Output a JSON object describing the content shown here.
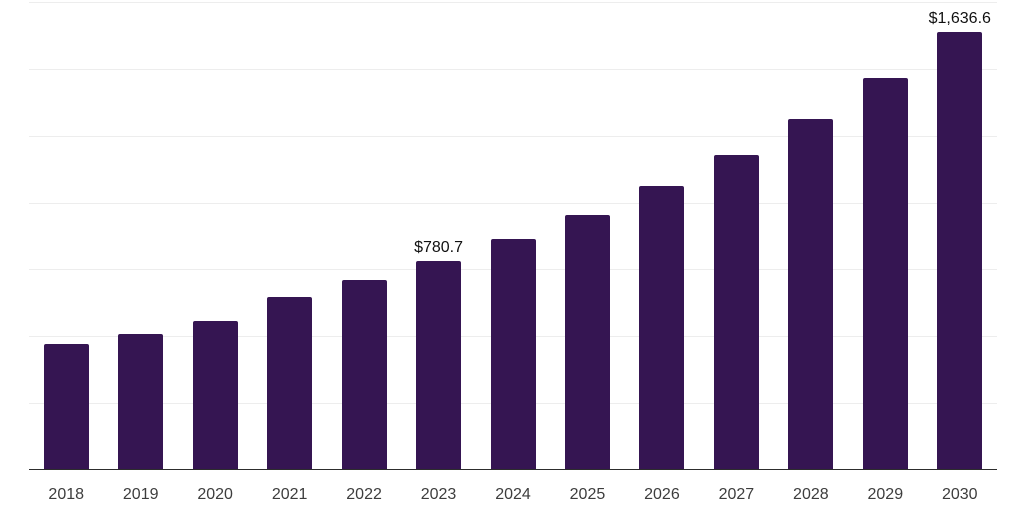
{
  "chart_data": {
    "type": "bar",
    "title": "",
    "xlabel": "",
    "ylabel": "",
    "categories": [
      "2018",
      "2019",
      "2020",
      "2021",
      "2022",
      "2023",
      "2024",
      "2025",
      "2026",
      "2027",
      "2028",
      "2029",
      "2030"
    ],
    "values": [
      470.0,
      508.0,
      558.0,
      647.0,
      709.0,
      780.7,
      864.0,
      953.0,
      1062.0,
      1178.0,
      1312.0,
      1466.0,
      1636.6
    ],
    "data_labels": [
      {
        "category": "2023",
        "text": "$780.7"
      },
      {
        "category": "2030",
        "text": "$1,636.6"
      }
    ],
    "ylim": [
      0,
      1750
    ],
    "gridline_step": 250,
    "grid": "horizontal",
    "legend": "none",
    "y_axis_tick_labels": "none",
    "colors": {
      "bar": "#351552",
      "gridline": "#ededed",
      "axis_line": "#2d2d2d",
      "tick_label": "#3d3d3d",
      "data_label": "#111111",
      "background": "#ffffff"
    }
  }
}
